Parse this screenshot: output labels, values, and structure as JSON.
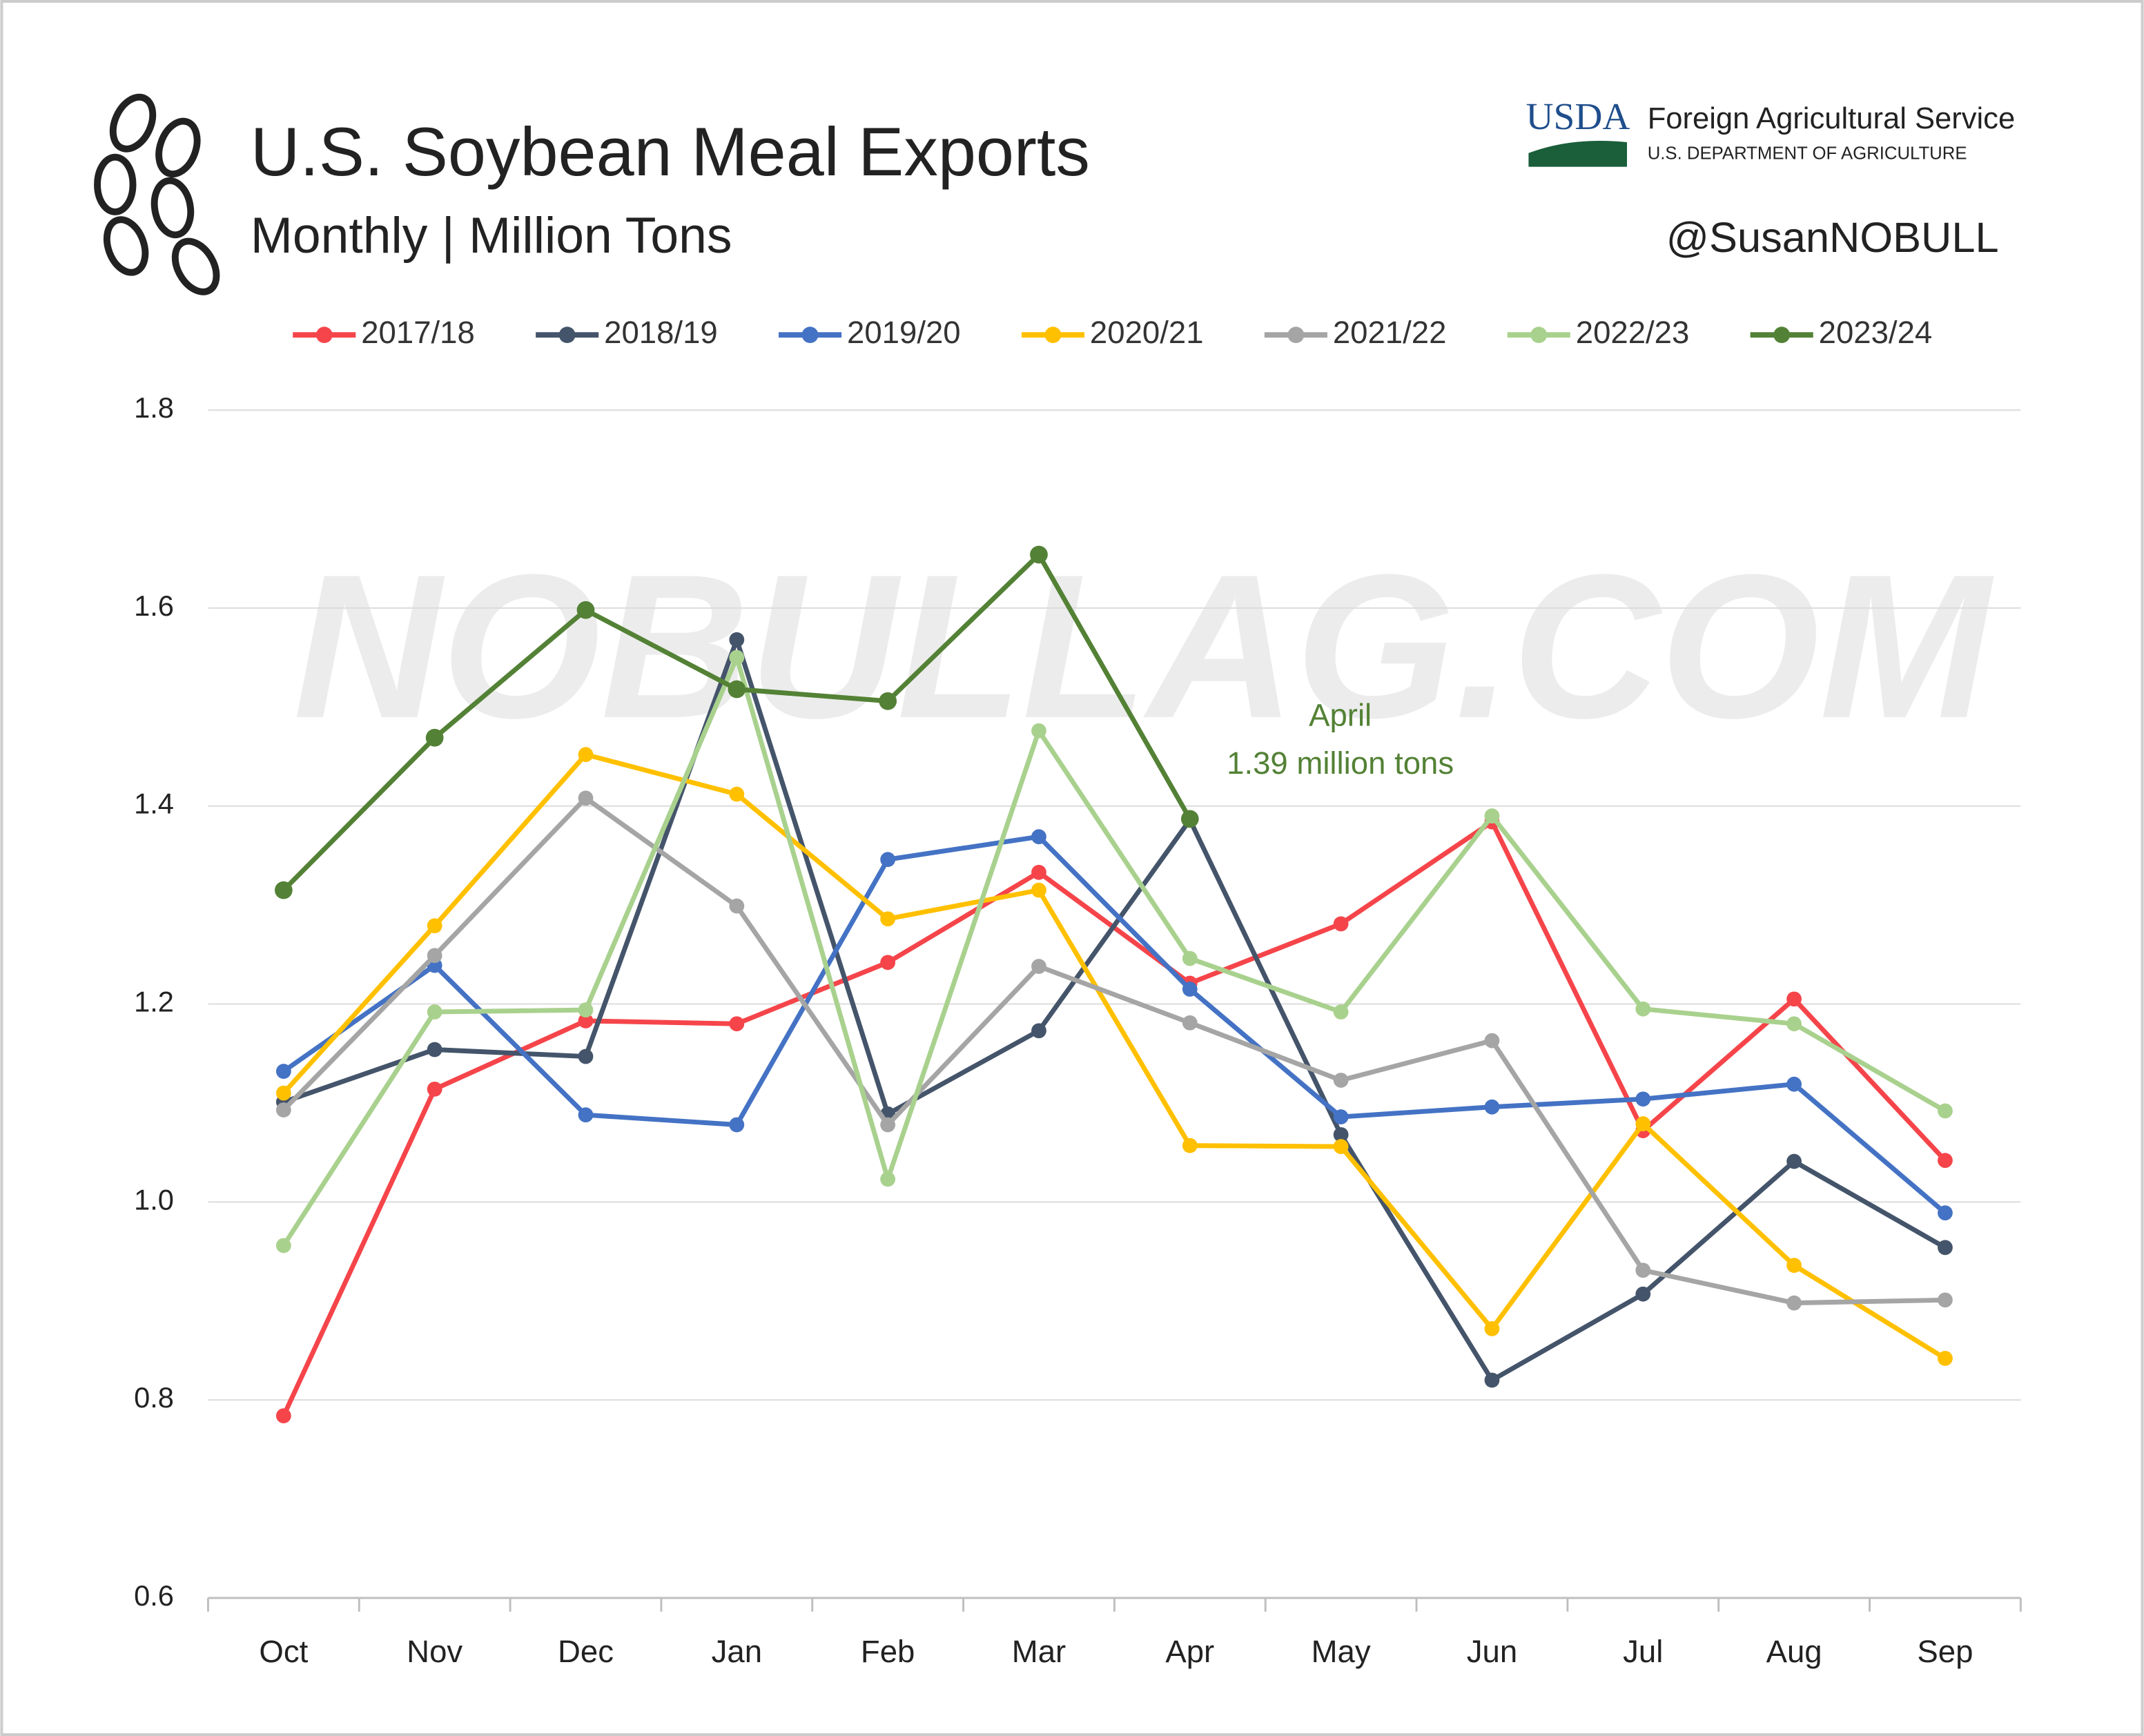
{
  "chart_data": {
    "type": "line",
    "title": "U.S. Soybean Meal Exports",
    "subtitle": "Monthly | Million Tons",
    "brand": {
      "logo": "USDA",
      "agency": "Foreign Agricultural Service",
      "department": "U.S. DEPARTMENT OF AGRICULTURE",
      "handle": "@SusanNOBULL"
    },
    "watermark": "NOBULLAG.COM",
    "annotation": [
      "April",
      "1.39 million tons"
    ],
    "annotation_color": "#538135",
    "categories": [
      "Oct",
      "Nov",
      "Dec",
      "Jan",
      "Feb",
      "Mar",
      "Apr",
      "May",
      "Jun",
      "Jul",
      "Aug",
      "Sep"
    ],
    "series": [
      {
        "name": "2017/18",
        "color": "#f5454a",
        "values": [
          0.784,
          1.114,
          1.183,
          1.18,
          1.242,
          1.333,
          1.221,
          1.281,
          1.384,
          1.072,
          1.205,
          1.042
        ]
      },
      {
        "name": "2018/19",
        "color": "#44546a",
        "values": [
          1.101,
          1.154,
          1.147,
          1.568,
          1.089,
          1.173,
          1.386,
          1.068,
          0.82,
          0.907,
          1.041,
          0.954
        ]
      },
      {
        "name": "2019/20",
        "color": "#4472c4",
        "values": [
          1.132,
          1.239,
          1.088,
          1.078,
          1.346,
          1.369,
          1.215,
          1.086,
          1.096,
          1.104,
          1.119,
          0.989
        ]
      },
      {
        "name": "2020/21",
        "color": "#ffc000",
        "values": [
          1.11,
          1.279,
          1.452,
          1.412,
          1.286,
          1.315,
          1.057,
          1.056,
          0.872,
          1.079,
          0.936,
          0.842
        ]
      },
      {
        "name": "2021/22",
        "color": "#a5a5a5",
        "values": [
          1.093,
          1.249,
          1.408,
          1.299,
          1.078,
          1.238,
          1.181,
          1.123,
          1.163,
          0.931,
          0.898,
          0.901
        ]
      },
      {
        "name": "2022/23",
        "color": "#a9d18e",
        "values": [
          0.956,
          1.192,
          1.194,
          1.55,
          1.023,
          1.476,
          1.246,
          1.192,
          1.39,
          1.195,
          1.18,
          1.092
        ]
      },
      {
        "name": "2023/24",
        "color": "#538135",
        "values": [
          1.315,
          1.469,
          1.598,
          1.518,
          1.506,
          1.654,
          1.387,
          null,
          null,
          null,
          null,
          null
        ]
      }
    ],
    "ylim": [
      0.6,
      1.8
    ],
    "yticks": [
      0.6,
      0.8,
      {
        "value": 1,
        "label": "1.0"
      },
      1.2,
      1.4,
      1.6,
      1.8
    ],
    "grid": true,
    "legend": "top"
  }
}
